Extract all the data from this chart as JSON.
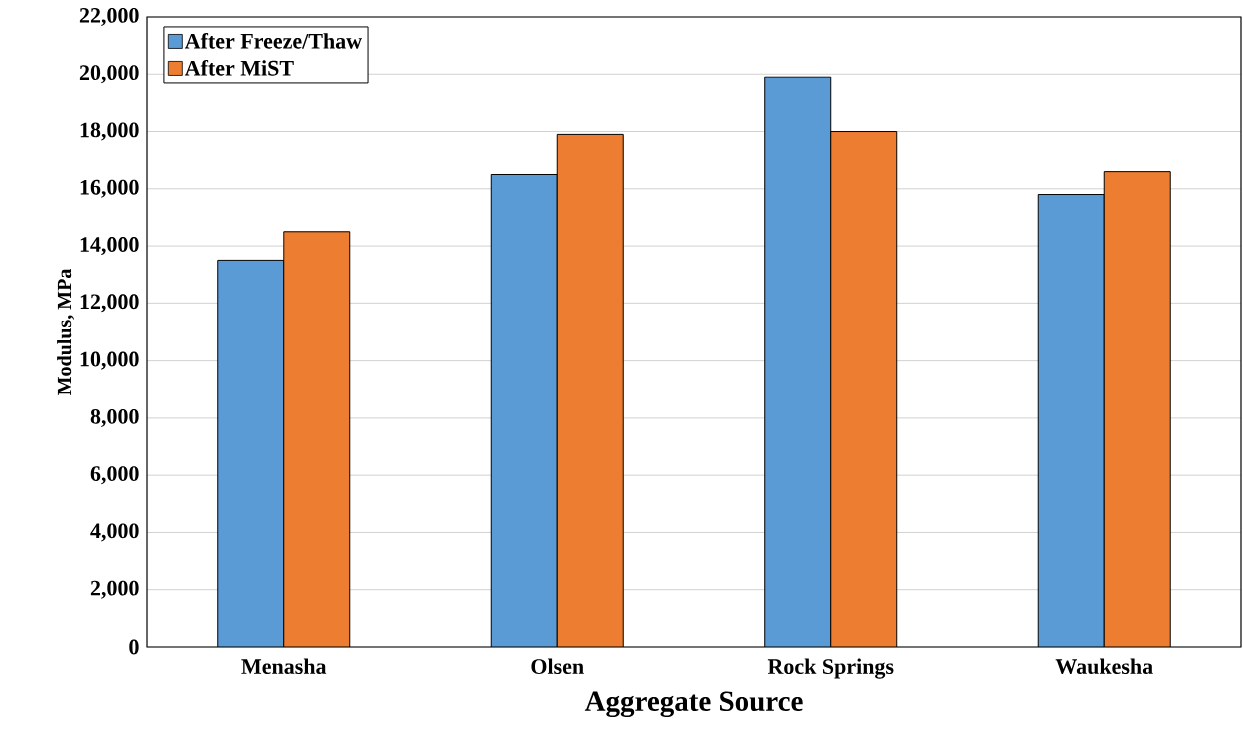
{
  "chart_data": {
    "type": "bar",
    "xlabel": "Aggregate Source",
    "ylabel": "Modulus, MPa",
    "categories": [
      "Menasha",
      "Olsen",
      "Rock Springs",
      "Waukesha"
    ],
    "series": [
      {
        "name": "After Freeze/Thaw",
        "color": "#5b9bd5",
        "values": [
          13500,
          16500,
          19900,
          15800
        ]
      },
      {
        "name": "After MiST",
        "color": "#ed7d31",
        "values": [
          14500,
          17900,
          18000,
          16600
        ]
      }
    ],
    "ylim": [
      0,
      22000
    ],
    "yticks": [
      {
        "value": 0,
        "label": "0"
      },
      {
        "value": 2000,
        "label": "2,000"
      },
      {
        "value": 4000,
        "label": "4,000"
      },
      {
        "value": 6000,
        "label": "6,000"
      },
      {
        "value": 8000,
        "label": "8,000"
      },
      {
        "value": 10000,
        "label": "10,000"
      },
      {
        "value": 12000,
        "label": "12,000"
      },
      {
        "value": 14000,
        "label": "14,000"
      },
      {
        "value": 16000,
        "label": "16,000"
      },
      {
        "value": 18000,
        "label": "18,000"
      },
      {
        "value": 20000,
        "label": "20,000"
      },
      {
        "value": 22000,
        "label": "22,000"
      }
    ],
    "grid": "y",
    "legend": "top left"
  }
}
